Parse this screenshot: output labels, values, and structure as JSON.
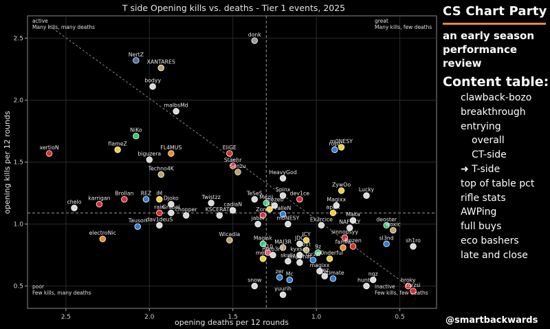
{
  "sidebar": {
    "brand": "CS Chart Party",
    "subtitle_line1": "an early season",
    "subtitle_line2": "performance review",
    "toc_title": "Content table:",
    "toc_items": [
      {
        "label": "clawback-bozo",
        "level": 1
      },
      {
        "label": "breakthrough",
        "level": 1
      },
      {
        "label": "entrying",
        "level": 1
      },
      {
        "label": "overall",
        "level": 2
      },
      {
        "label": "CT-side",
        "level": 2
      },
      {
        "label": "➜ T-side",
        "level": 1
      },
      {
        "label": "top of table pct",
        "level": 1
      },
      {
        "label": "rifle stats",
        "level": 1
      },
      {
        "label": "AWPing",
        "level": 1
      },
      {
        "label": "full buys",
        "level": 1
      },
      {
        "label": "eco bashers",
        "level": 1
      },
      {
        "label": "late and close",
        "level": 1
      }
    ],
    "handle": "@smartbackwards"
  },
  "chart_data": {
    "type": "scatter",
    "title": "T side Opening kills vs. deaths - Tier 1 events, 2025",
    "xlabel": "opening deaths per 12 rounds",
    "ylabel": "opening kills per 12 rounds",
    "xlim": [
      2.73,
      0.28
    ],
    "ylim": [
      0.32,
      2.68
    ],
    "x_inverted": true,
    "xticks": [
      "2.5",
      "2.0",
      "1.5",
      "1.0",
      "0.5"
    ],
    "xtick_values": [
      2.5,
      2.0,
      1.5,
      1.0,
      0.5
    ],
    "yticks": [
      "0.5",
      "1.0",
      "1.5",
      "2.0",
      "2.5"
    ],
    "ytick_values": [
      0.5,
      1.0,
      1.5,
      2.0,
      2.5
    ],
    "grid": true,
    "ref_x": 1.3,
    "ref_y": 1.09,
    "trend_line": [
      [
        2.6,
        2.6
      ],
      [
        0.45,
        0.5
      ]
    ],
    "quadrant_labels": [
      {
        "line1": "active",
        "line2": "Many kills, many deaths",
        "corner": "top-left"
      },
      {
        "line1": "great",
        "line2": "Many kills, few deaths",
        "corner": "top-right"
      },
      {
        "line1": "poor",
        "line2": "Few kills, many deaths",
        "corner": "bottom-left"
      },
      {
        "line1": "inactive",
        "line2": "Few kills, few deaths",
        "corner": "bottom-right"
      }
    ],
    "points": [
      {
        "name": "donk",
        "x": 1.37,
        "y": 2.48,
        "color": "#9a9a9a"
      },
      {
        "name": "NertZ",
        "x": 2.08,
        "y": 2.32,
        "color": "#4a6fa5"
      },
      {
        "name": "XANTARES",
        "x": 1.93,
        "y": 2.26,
        "color": "#bfa26a"
      },
      {
        "name": "bodyy",
        "x": 1.98,
        "y": 2.11,
        "color": "#d9d9d9"
      },
      {
        "name": "malbsMd",
        "x": 1.84,
        "y": 1.91,
        "color": "#d9d9d9"
      },
      {
        "name": "NiKo",
        "x": 2.08,
        "y": 1.71,
        "color": "#2ecc71"
      },
      {
        "name": "flameZ",
        "x": 2.19,
        "y": 1.6,
        "color": "#f1d130"
      },
      {
        "name": "FL4MUS",
        "x": 1.87,
        "y": 1.57,
        "color": "#f08a24"
      },
      {
        "name": "EliGE",
        "x": 1.52,
        "y": 1.57,
        "color": "#e02b2b"
      },
      {
        "name": "ropz",
        "x": 0.89,
        "y": 1.6,
        "color": "#2e7dd6"
      },
      {
        "name": "m0NESY",
        "x": 0.85,
        "y": 1.62,
        "color": "#f1d130"
      },
      {
        "name": "xertioN",
        "x": 2.6,
        "y": 1.57,
        "color": "#e02b2b"
      },
      {
        "name": "biguzera",
        "x": 2.0,
        "y": 1.52,
        "color": "#d9d9d9"
      },
      {
        "name": "Staehr",
        "x": 1.5,
        "y": 1.47,
        "color": "#e02b2b"
      },
      {
        "name": "Senzu",
        "x": 1.47,
        "y": 1.42,
        "color": "#bfa26a"
      },
      {
        "name": "Techno4K",
        "x": 1.93,
        "y": 1.4,
        "color": "#bfa26a"
      },
      {
        "name": "HeavyGod",
        "x": 1.2,
        "y": 1.37,
        "color": "#d9d9d9"
      },
      {
        "name": "ZywOo",
        "x": 0.85,
        "y": 1.27,
        "color": "#f1d130"
      },
      {
        "name": "Lucky",
        "x": 0.7,
        "y": 1.23,
        "color": "#d9d9d9"
      },
      {
        "name": "Spinx",
        "x": 1.2,
        "y": 1.23,
        "color": "#d9d9d9"
      },
      {
        "name": "TeSeS",
        "x": 1.37,
        "y": 1.2,
        "color": "#d9d9d9"
      },
      {
        "name": "dev1ce",
        "x": 1.1,
        "y": 1.2,
        "color": "#e02b2b"
      },
      {
        "name": "Brollan",
        "x": 2.15,
        "y": 1.2,
        "color": "#e02b2b"
      },
      {
        "name": "REZ",
        "x": 2.02,
        "y": 1.2,
        "color": "#2e7dd6"
      },
      {
        "name": "iM",
        "x": 1.94,
        "y": 1.2,
        "color": "#f1d130"
      },
      {
        "name": "karrigan",
        "x": 2.3,
        "y": 1.16,
        "color": "#e02b2b"
      },
      {
        "name": "Djoko",
        "x": 1.87,
        "y": 1.16,
        "color": "#d9d9d9"
      },
      {
        "name": "Twistzz",
        "x": 1.63,
        "y": 1.17,
        "color": "#d9d9d9"
      },
      {
        "name": "chelo",
        "x": 2.45,
        "y": 1.13,
        "color": "#d9d9d9"
      },
      {
        "name": "Mezii",
        "x": 1.3,
        "y": 1.17,
        "color": "#2ecc71"
      },
      {
        "name": "jks",
        "x": 1.28,
        "y": 1.12,
        "color": "#f1d130"
      },
      {
        "name": "mezeb",
        "x": 1.25,
        "y": 1.15,
        "color": "#d9d9d9"
      },
      {
        "name": "rain",
        "x": 1.94,
        "y": 1.09,
        "color": "#e02b2b"
      },
      {
        "name": "Grabel",
        "x": 1.87,
        "y": 1.09,
        "color": "#d9d9d9"
      },
      {
        "name": "cadiaN",
        "x": 1.5,
        "y": 1.11,
        "color": "#d9d9d9"
      },
      {
        "name": "KSCERATO",
        "x": 1.58,
        "y": 1.07,
        "color": "#d9d9d9"
      },
      {
        "name": "Zontl",
        "x": 1.32,
        "y": 1.07,
        "color": "#e02b2b"
      },
      {
        "name": "FalleN",
        "x": 1.2,
        "y": 1.08,
        "color": "#2e7dd6"
      },
      {
        "name": "Magixx",
        "x": 0.88,
        "y": 1.15,
        "color": "#d9d9d9"
      },
      {
        "name": "apEX",
        "x": 0.9,
        "y": 1.09,
        "color": "#f1d130"
      },
      {
        "name": "chopper",
        "x": 1.78,
        "y": 1.07,
        "color": "#d9d9d9"
      },
      {
        "name": "Maka",
        "x": 0.78,
        "y": 1.03,
        "color": "#d9d9d9"
      },
      {
        "name": "jabbi",
        "x": 1.35,
        "y": 1.0,
        "color": "#d9d9d9"
      },
      {
        "name": "dav1deuS",
        "x": 1.94,
        "y": 0.99,
        "color": "#d9d9d9"
      },
      {
        "name": "Tauson",
        "x": 2.07,
        "y": 0.98,
        "color": "#2e7dd6"
      },
      {
        "name": "m0NESY",
        "x": 1.17,
        "y": 1.0,
        "color": "#d9d9d9"
      },
      {
        "name": "Ex3rcice",
        "x": 0.97,
        "y": 0.99,
        "color": "#d9d9d9"
      },
      {
        "name": "NAF-FLY",
        "x": 0.8,
        "y": 0.97,
        "color": "#d9d9d9"
      },
      {
        "name": "deoster",
        "x": 0.58,
        "y": 0.99,
        "color": "#2ecc71"
      },
      {
        "name": "woxic",
        "x": 0.54,
        "y": 0.95,
        "color": "#bfa26a"
      },
      {
        "name": "electroNic",
        "x": 2.28,
        "y": 0.88,
        "color": "#f08a24"
      },
      {
        "name": "Wicadia",
        "x": 1.52,
        "y": 0.87,
        "color": "#bfa26a"
      },
      {
        "name": "sinnopsyy",
        "x": 0.83,
        "y": 0.89,
        "color": "#e02b2b"
      },
      {
        "name": "sl3nd",
        "x": 0.58,
        "y": 0.84,
        "color": "#2e7dd6"
      },
      {
        "name": "sh1ro",
        "x": 0.42,
        "y": 0.82,
        "color": "#d9d9d9"
      },
      {
        "name": "Magisk",
        "x": 1.32,
        "y": 0.84,
        "color": "#2ecc71"
      },
      {
        "name": "MAJ3R",
        "x": 1.2,
        "y": 0.81,
        "color": "#bfa26a"
      },
      {
        "name": "JDC",
        "x": 1.1,
        "y": 0.84,
        "color": "#d9d9d9"
      },
      {
        "name": "ICY",
        "x": 1.06,
        "y": 0.87,
        "color": "#f1d130"
      },
      {
        "name": "b1t",
        "x": 1.06,
        "y": 0.79,
        "color": "#bfa26a"
      },
      {
        "name": "frozen",
        "x": 0.78,
        "y": 0.82,
        "color": "#e02b2b"
      },
      {
        "name": "famfa",
        "x": 0.84,
        "y": 0.81,
        "color": "#f08a24"
      },
      {
        "name": "9z",
        "x": 0.99,
        "y": 0.77,
        "color": "#2ecc71"
      },
      {
        "name": "kyxsan",
        "x": 1.1,
        "y": 0.75,
        "color": "#d9d9d9"
      },
      {
        "name": "910",
        "x": 1.29,
        "y": 0.77,
        "color": "#e02b2b"
      },
      {
        "name": "n0rb3r7",
        "x": 1.26,
        "y": 0.75,
        "color": "#d9d9d9"
      },
      {
        "name": "mezii",
        "x": 1.32,
        "y": 0.72,
        "color": "#f1d130"
      },
      {
        "name": "skullz",
        "x": 1.17,
        "y": 0.7,
        "color": "#d9d9d9"
      },
      {
        "name": "jimpphat",
        "x": 1.1,
        "y": 0.69,
        "color": "#d9d9d9"
      },
      {
        "name": "torzsi",
        "x": 1.02,
        "y": 0.71,
        "color": "#2e7dd6"
      },
      {
        "name": "w0nderful",
        "x": 0.92,
        "y": 0.72,
        "color": "#f1d130"
      },
      {
        "name": "magixx",
        "x": 0.98,
        "y": 0.62,
        "color": "#d9d9d9"
      },
      {
        "name": "zer",
        "x": 1.22,
        "y": 0.57,
        "color": "#2e7dd6"
      },
      {
        "name": "Mc",
        "x": 1.16,
        "y": 0.55,
        "color": "#2e7dd6"
      },
      {
        "name": "snow",
        "x": 1.37,
        "y": 0.5,
        "color": "#d9d9d9"
      },
      {
        "name": "ultimate",
        "x": 0.9,
        "y": 0.56,
        "color": "#2e7dd6"
      },
      {
        "name": "rez",
        "x": 0.95,
        "y": 0.58,
        "color": "#d9d9d9"
      },
      {
        "name": "hunter",
        "x": 0.7,
        "y": 0.5,
        "color": "#d9d9d9"
      },
      {
        "name": "nqz",
        "x": 0.66,
        "y": 0.55,
        "color": "#d9d9d9"
      },
      {
        "name": "broky",
        "x": 0.45,
        "y": 0.5,
        "color": "#e02b2b"
      },
      {
        "name": "torzsi",
        "x": 0.42,
        "y": 0.46,
        "color": "#e02b2b"
      },
      {
        "name": "yuurih",
        "x": 1.2,
        "y": 0.43,
        "color": "#d9d9d9"
      }
    ]
  }
}
